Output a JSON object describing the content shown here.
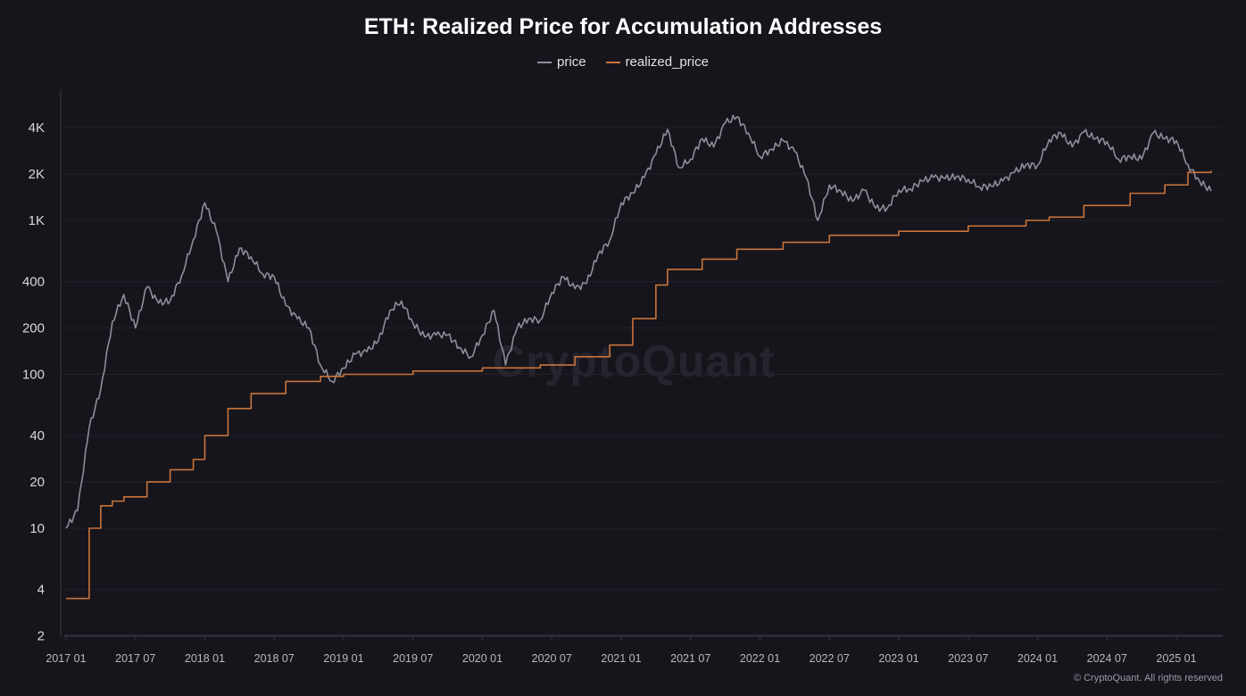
{
  "chart_data": {
    "type": "line",
    "title": "ETH: Realized Price for Accumulation Addresses",
    "xlabel": "",
    "ylabel": "",
    "y_scale": "log",
    "ylim": [
      2,
      5000
    ],
    "y_ticks": [
      {
        "v": 4000,
        "label": "4K"
      },
      {
        "v": 2000,
        "label": "2K"
      },
      {
        "v": 1000,
        "label": "1K"
      },
      {
        "v": 400,
        "label": "400"
      },
      {
        "v": 200,
        "label": "200"
      },
      {
        "v": 100,
        "label": "100"
      },
      {
        "v": 40,
        "label": "40"
      },
      {
        "v": 20,
        "label": "20"
      },
      {
        "v": 10,
        "label": "10"
      },
      {
        "v": 4,
        "label": "4"
      },
      {
        "v": 2,
        "label": "2"
      }
    ],
    "x_ticks": [
      "2017 01",
      "2017 07",
      "2018 01",
      "2018 07",
      "2019 01",
      "2019 07",
      "2020 01",
      "2020 07",
      "2021 01",
      "2021 07",
      "2022 01",
      "2022 07",
      "2023 01",
      "2023 07",
      "2024 01",
      "2024 07",
      "2025 01"
    ],
    "grid": true,
    "legend_position": "top-center",
    "series": [
      {
        "name": "price",
        "color": "#8e8e98",
        "points": [
          [
            "2017-01",
            10
          ],
          [
            "2017-02",
            13
          ],
          [
            "2017-03",
            45
          ],
          [
            "2017-04",
            80
          ],
          [
            "2017-05",
            220
          ],
          [
            "2017-06",
            330
          ],
          [
            "2017-07",
            200
          ],
          [
            "2017-08",
            370
          ],
          [
            "2017-09",
            290
          ],
          [
            "2017-10",
            300
          ],
          [
            "2017-11",
            440
          ],
          [
            "2017-12",
            750
          ],
          [
            "2018-01",
            1300
          ],
          [
            "2018-02",
            850
          ],
          [
            "2018-03",
            400
          ],
          [
            "2018-04",
            660
          ],
          [
            "2018-05",
            580
          ],
          [
            "2018-06",
            450
          ],
          [
            "2018-07",
            430
          ],
          [
            "2018-08",
            280
          ],
          [
            "2018-09",
            230
          ],
          [
            "2018-10",
            200
          ],
          [
            "2018-11",
            115
          ],
          [
            "2018-12",
            90
          ],
          [
            "2019-01",
            110
          ],
          [
            "2019-02",
            135
          ],
          [
            "2019-03",
            140
          ],
          [
            "2019-04",
            165
          ],
          [
            "2019-05",
            260
          ],
          [
            "2019-06",
            300
          ],
          [
            "2019-07",
            215
          ],
          [
            "2019-08",
            175
          ],
          [
            "2019-09",
            180
          ],
          [
            "2019-10",
            180
          ],
          [
            "2019-11",
            150
          ],
          [
            "2019-12",
            130
          ],
          [
            "2020-01",
            180
          ],
          [
            "2020-02",
            260
          ],
          [
            "2020-03",
            115
          ],
          [
            "2020-04",
            200
          ],
          [
            "2020-05",
            230
          ],
          [
            "2020-06",
            225
          ],
          [
            "2020-07",
            340
          ],
          [
            "2020-08",
            430
          ],
          [
            "2020-09",
            360
          ],
          [
            "2020-10",
            390
          ],
          [
            "2020-11",
            600
          ],
          [
            "2020-12",
            740
          ],
          [
            "2021-01",
            1300
          ],
          [
            "2021-02",
            1500
          ],
          [
            "2021-03",
            1900
          ],
          [
            "2021-04",
            2700
          ],
          [
            "2021-05",
            3900
          ],
          [
            "2021-06",
            2200
          ],
          [
            "2021-07",
            2500
          ],
          [
            "2021-08",
            3400
          ],
          [
            "2021-09",
            3000
          ],
          [
            "2021-10",
            4300
          ],
          [
            "2021-11",
            4700
          ],
          [
            "2021-12",
            3700
          ],
          [
            "2022-01",
            2600
          ],
          [
            "2022-02",
            2900
          ],
          [
            "2022-03",
            3300
          ],
          [
            "2022-04",
            2800
          ],
          [
            "2022-05",
            1900
          ],
          [
            "2022-06",
            1000
          ],
          [
            "2022-07",
            1700
          ],
          [
            "2022-08",
            1550
          ],
          [
            "2022-09",
            1330
          ],
          [
            "2022-10",
            1570
          ],
          [
            "2022-11",
            1200
          ],
          [
            "2022-12",
            1200
          ],
          [
            "2023-01",
            1580
          ],
          [
            "2023-02",
            1600
          ],
          [
            "2023-03",
            1800
          ],
          [
            "2023-04",
            1900
          ],
          [
            "2023-05",
            1870
          ],
          [
            "2023-06",
            1930
          ],
          [
            "2023-07",
            1850
          ],
          [
            "2023-08",
            1650
          ],
          [
            "2023-09",
            1670
          ],
          [
            "2023-10",
            1800
          ],
          [
            "2023-11",
            2050
          ],
          [
            "2023-12",
            2300
          ],
          [
            "2024-01",
            2280
          ],
          [
            "2024-02",
            3350
          ],
          [
            "2024-03",
            3700
          ],
          [
            "2024-04",
            3000
          ],
          [
            "2024-05",
            3750
          ],
          [
            "2024-06",
            3400
          ],
          [
            "2024-07",
            3250
          ],
          [
            "2024-08",
            2500
          ],
          [
            "2024-09",
            2600
          ],
          [
            "2024-10",
            2500
          ],
          [
            "2024-11",
            3700
          ],
          [
            "2024-12",
            3400
          ],
          [
            "2025-01",
            3300
          ],
          [
            "2025-02",
            2300
          ],
          [
            "2025-03",
            1800
          ],
          [
            "2025-04",
            1550
          ]
        ]
      },
      {
        "name": "realized_price",
        "color": "#c8743a",
        "points": [
          [
            "2017-01",
            3.5
          ],
          [
            "2017-02",
            3.5
          ],
          [
            "2017-03",
            10
          ],
          [
            "2017-04",
            14
          ],
          [
            "2017-05",
            15
          ],
          [
            "2017-06",
            16
          ],
          [
            "2017-08",
            20
          ],
          [
            "2017-10",
            24
          ],
          [
            "2017-12",
            28
          ],
          [
            "2018-01",
            40
          ],
          [
            "2018-03",
            60
          ],
          [
            "2018-05",
            75
          ],
          [
            "2018-08",
            90
          ],
          [
            "2018-11",
            97
          ],
          [
            "2019-01",
            100
          ],
          [
            "2019-07",
            105
          ],
          [
            "2020-01",
            110
          ],
          [
            "2020-06",
            115
          ],
          [
            "2020-09",
            130
          ],
          [
            "2020-12",
            155
          ],
          [
            "2021-02",
            230
          ],
          [
            "2021-04",
            380
          ],
          [
            "2021-05",
            480
          ],
          [
            "2021-08",
            560
          ],
          [
            "2021-11",
            650
          ],
          [
            "2022-03",
            720
          ],
          [
            "2022-07",
            800
          ],
          [
            "2023-01",
            850
          ],
          [
            "2023-07",
            920
          ],
          [
            "2023-12",
            1000
          ],
          [
            "2024-02",
            1050
          ],
          [
            "2024-05",
            1250
          ],
          [
            "2024-09",
            1500
          ],
          [
            "2024-12",
            1700
          ],
          [
            "2025-02",
            2050
          ],
          [
            "2025-04",
            2100
          ]
        ]
      }
    ]
  },
  "watermark": "CryptoQuant",
  "copyright": "© CryptoQuant. All rights reserved"
}
